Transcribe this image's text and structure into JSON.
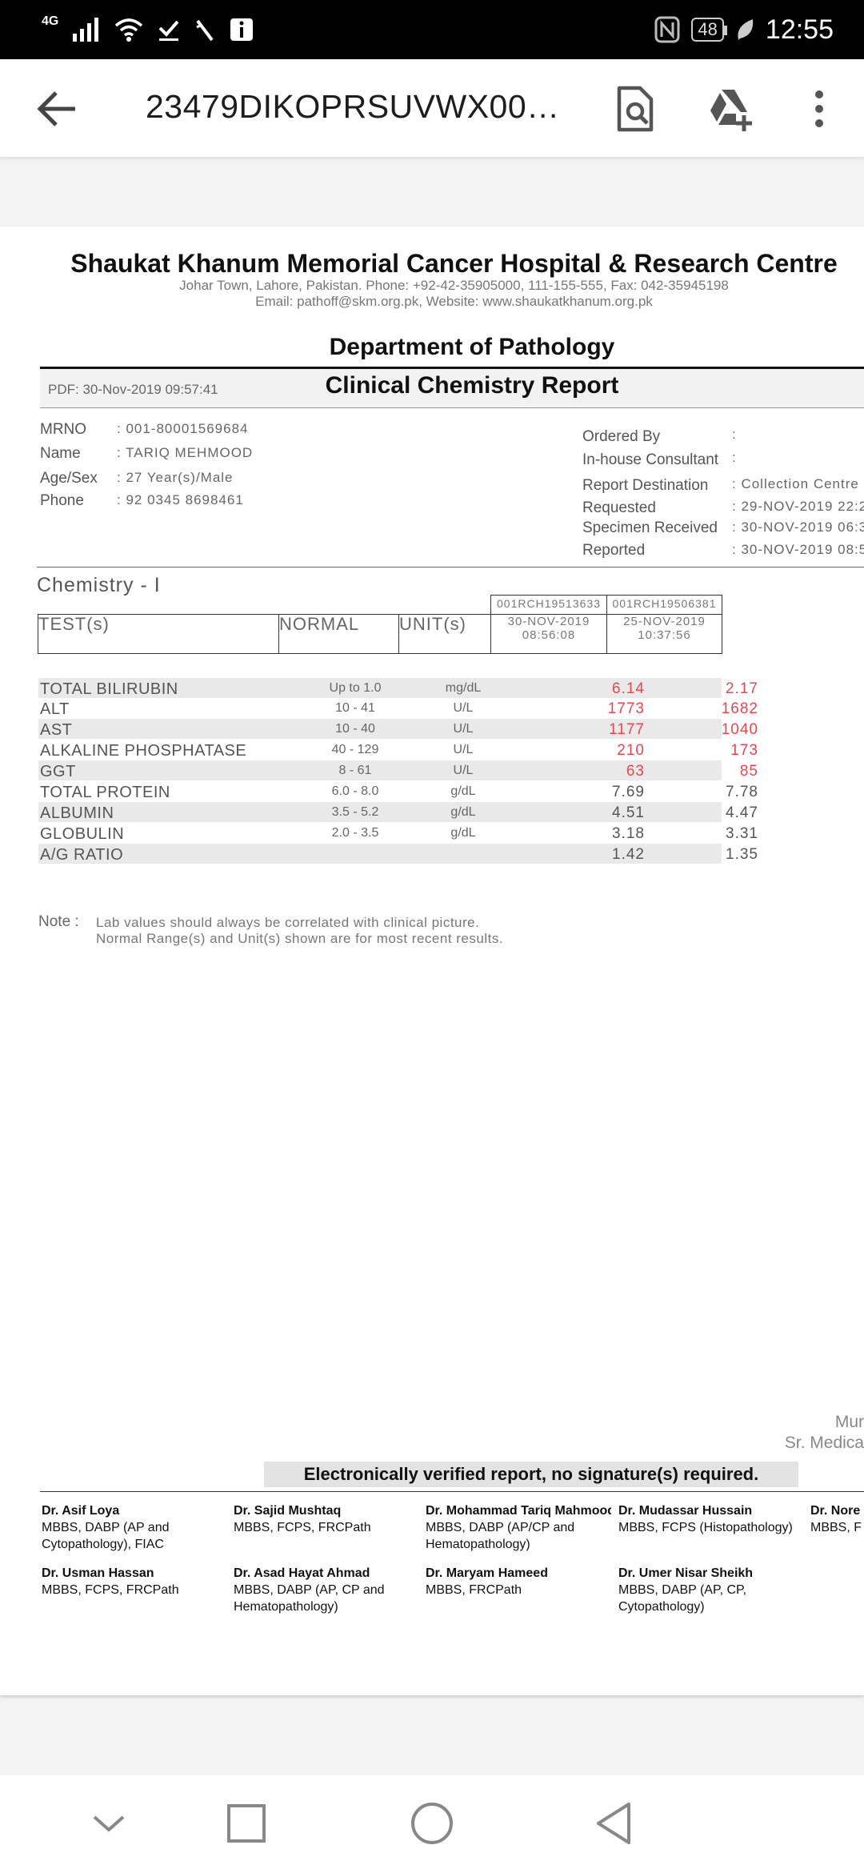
{
  "status_bar": {
    "network": "4G",
    "battery": "48",
    "time": "12:55"
  },
  "app_bar": {
    "title": "23479DIKOPRSUVWX00100..."
  },
  "report": {
    "hospital": "Shaukat Khanum Memorial Cancer Hospital & Research Centre",
    "address": "Johar Town, Lahore, Pakistan. Phone: +92-42-35905000, 111-155-555, Fax: 042-35945198",
    "contact": "Email: pathoff@skm.org.pk, Website: www.shaukatkhanum.org.pk",
    "department": "Department of Pathology",
    "pdf_date": "PDF: 30-Nov-2019 09:57:41",
    "title": "Clinical Chemistry Report",
    "patient": [
      {
        "label": "MRNO",
        "value": ": 001-80001569684"
      },
      {
        "label": "Name",
        "value": ": TARIQ MEHMOOD"
      },
      {
        "label": "Age/Sex",
        "value": ": 27 Year(s)/Male"
      },
      {
        "label": "Phone",
        "value": ": 92 0345 8698461"
      }
    ],
    "order_info": [
      {
        "label": "Ordered By",
        "value": ":"
      },
      {
        "label": "In-house Consultant",
        "value": ":"
      },
      {
        "label": "Report Destination",
        "value": ":  Collection Centre"
      },
      {
        "label": "Requested",
        "value": ":  29-NOV-2019 22:2"
      },
      {
        "label": "Specimen Received",
        "value": ":  30-NOV-2019 06:3"
      },
      {
        "label": "Reported",
        "value": ":  30-NOV-2019 08:5"
      }
    ],
    "section": "Chemistry - I",
    "headers": {
      "test": "TEST(s)",
      "normal": "NORMAL",
      "unit": "UNIT(s)"
    },
    "columns": [
      {
        "accession": "001RCH19513633",
        "date": "30-NOV-2019",
        "time": "08:56:08"
      },
      {
        "accession": "001RCH19506381",
        "date": "25-NOV-2019",
        "time": "10:37:56"
      }
    ],
    "rows": [
      {
        "test": "TOTAL BILIRUBIN",
        "normal": "Up to 1.0",
        "unit": "mg/dL",
        "v1": "6.14",
        "v2": "2.17",
        "abnormal": true
      },
      {
        "test": "ALT",
        "normal": "10 - 41",
        "unit": "U/L",
        "v1": "1773",
        "v2": "1682",
        "abnormal": true
      },
      {
        "test": "AST",
        "normal": "10 - 40",
        "unit": "U/L",
        "v1": "1177",
        "v2": "1040",
        "abnormal": true
      },
      {
        "test": "ALKALINE PHOSPHATASE",
        "normal": "40 - 129",
        "unit": "U/L",
        "v1": "210",
        "v2": "173",
        "abnormal": true
      },
      {
        "test": "GGT",
        "normal": "8 - 61",
        "unit": "U/L",
        "v1": "63",
        "v2": "85",
        "abnormal": true
      },
      {
        "test": "TOTAL PROTEIN",
        "normal": "6.0 - 8.0",
        "unit": "g/dL",
        "v1": "7.69",
        "v2": "7.78",
        "abnormal": false
      },
      {
        "test": "ALBUMIN",
        "normal": "3.5 - 5.2",
        "unit": "g/dL",
        "v1": "4.51",
        "v2": "4.47",
        "abnormal": false
      },
      {
        "test": "GLOBULIN",
        "normal": "2.0 - 3.5",
        "unit": "g/dL",
        "v1": "3.18",
        "v2": "3.31",
        "abnormal": false
      },
      {
        "test": "A/G RATIO",
        "normal": "",
        "unit": "",
        "v1": "1.42",
        "v2": "1.35",
        "abnormal": false
      }
    ],
    "note_label": "Note :",
    "notes": [
      "Lab values should always be correlated with clinical picture.",
      "Normal Range(s) and Unit(s) shown are for most recent results."
    ],
    "signer_name": "Mur",
    "signer_title": "Sr. Medica",
    "verified": "Electronically verified report, no signature(s) required.",
    "doctors": [
      {
        "name": "Dr. Asif Loya",
        "quals": "MBBS, DABP (AP and Cytopathology), FIAC"
      },
      {
        "name": "Dr. Sajid Mushtaq",
        "quals": "MBBS, FCPS, FRCPath"
      },
      {
        "name": "Dr. Mohammad Tariq Mahmood",
        "quals": "MBBS, DABP (AP/CP and Hematopathology)"
      },
      {
        "name": "Dr. Mudassar Hussain",
        "quals": "MBBS, FCPS (Histopathology)"
      },
      {
        "name": "Dr. Nore",
        "quals": "MBBS, F"
      },
      {
        "name": "Dr. Usman Hassan",
        "quals": "MBBS, FCPS, FRCPath"
      },
      {
        "name": "Dr. Asad Hayat Ahmad",
        "quals": "MBBS, DABP (AP, CP and Hematopathology)"
      },
      {
        "name": "Dr. Maryam Hameed",
        "quals": "MBBS, FRCPath"
      },
      {
        "name": "Dr. Umer Nisar Sheikh",
        "quals": "MBBS, DABP (AP, CP, Cytopathology)"
      }
    ]
  },
  "colors": {
    "abnormal": "#e8474f",
    "normal": "#555555",
    "row_shade": "#e9e9e9"
  }
}
